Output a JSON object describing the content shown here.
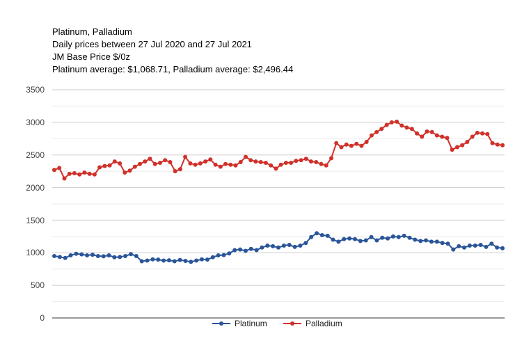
{
  "title": {
    "line1": "Platinum, Palladium",
    "line2": "Daily prices between 27 Jul 2020 and 27 Jul 2021",
    "line3": "JM Base Price $/0z",
    "line4": "Platinum average: $1,068.71, Palladium average: $2,496.44"
  },
  "axis": {
    "y_ticks": [
      "3500",
      "3000",
      "2500",
      "2000",
      "1500",
      "1000",
      "500",
      "0"
    ]
  },
  "legend": {
    "platinum": "Platinum",
    "palladium": "Palladium"
  },
  "colors": {
    "platinum": "#2a5599",
    "palladium": "#d0312a",
    "grid": "#cccccc",
    "minor_grid": "#ebebeb",
    "baseline": "#333333"
  },
  "chart_data": {
    "type": "line",
    "title": "Platinum, Palladium",
    "subtitle": "Daily prices between 27 Jul 2020 and 27 Jul 2021; JM Base Price $/0z",
    "xlabel": "",
    "ylabel": "",
    "ylim": [
      0,
      3500
    ],
    "y_ticks": [
      0,
      500,
      1000,
      1500,
      2000,
      2500,
      3000,
      3500
    ],
    "x_range": [
      "27 Jul 2020",
      "27 Jul 2021"
    ],
    "grid": true,
    "legend_position": "bottom",
    "annotations": [
      "Platinum average: $1,068.71",
      "Palladium average: $2,496.44"
    ],
    "series": [
      {
        "name": "Platinum",
        "color": "#2a5599",
        "values": [
          950,
          935,
          920,
          960,
          985,
          975,
          960,
          970,
          950,
          945,
          960,
          930,
          935,
          950,
          980,
          950,
          870,
          880,
          900,
          895,
          880,
          885,
          870,
          890,
          875,
          860,
          880,
          900,
          895,
          930,
          960,
          965,
          990,
          1040,
          1050,
          1030,
          1060,
          1040,
          1080,
          1110,
          1100,
          1080,
          1110,
          1120,
          1090,
          1110,
          1150,
          1240,
          1300,
          1270,
          1260,
          1200,
          1170,
          1210,
          1220,
          1210,
          1180,
          1190,
          1240,
          1190,
          1230,
          1220,
          1250,
          1240,
          1260,
          1230,
          1200,
          1180,
          1190,
          1170,
          1170,
          1150,
          1140,
          1050,
          1100,
          1080,
          1110,
          1110,
          1120,
          1090,
          1140,
          1080,
          1070
        ]
      },
      {
        "name": "Palladium",
        "color": "#d0312a",
        "values": [
          2270,
          2300,
          2140,
          2210,
          2220,
          2200,
          2230,
          2210,
          2200,
          2310,
          2330,
          2340,
          2400,
          2370,
          2230,
          2260,
          2320,
          2360,
          2400,
          2440,
          2360,
          2380,
          2420,
          2390,
          2250,
          2280,
          2470,
          2370,
          2350,
          2370,
          2400,
          2430,
          2350,
          2320,
          2360,
          2350,
          2340,
          2390,
          2470,
          2420,
          2400,
          2390,
          2380,
          2340,
          2290,
          2350,
          2380,
          2380,
          2410,
          2420,
          2440,
          2400,
          2390,
          2360,
          2340,
          2450,
          2680,
          2620,
          2660,
          2640,
          2670,
          2640,
          2700,
          2800,
          2850,
          2900,
          2960,
          3000,
          3010,
          2950,
          2920,
          2900,
          2830,
          2780,
          2860,
          2850,
          2800,
          2780,
          2760,
          2580,
          2620,
          2650,
          2700,
          2780,
          2840,
          2830,
          2820,
          2680,
          2660,
          2650
        ]
      }
    ]
  }
}
